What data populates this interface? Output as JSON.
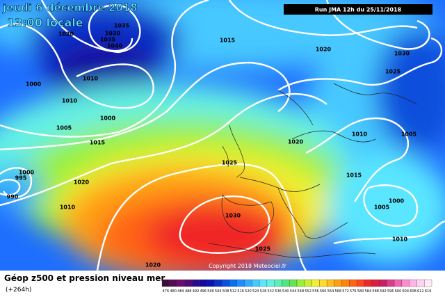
{
  "header": {
    "date": "jeudi 6 décembre 2018",
    "time": "13:00 locale",
    "run": "Run JMA 12h du 25/11/2018"
  },
  "isobar_labels": [
    "1020",
    "1035",
    "1030",
    "1035",
    "1040",
    "1000",
    "1010",
    "1010",
    "1000",
    "1005",
    "1015",
    "1015",
    "1020",
    "1030",
    "1025",
    "1010",
    "1005",
    "1020",
    "1025",
    "1000",
    "995",
    "1020",
    "990",
    "1010",
    "1015",
    "1000",
    "1005",
    "1030",
    "1010",
    "1025",
    "1020"
  ],
  "copyright": "Copyright 2018 Meteociel.fr",
  "legend": {
    "title": "Géop z500 et pression niveau mer",
    "lead": "(+264h)",
    "scale": [
      {
        "label": "476",
        "color": "#3c0a3c"
      },
      {
        "label": "480",
        "color": "#550a55"
      },
      {
        "label": "484",
        "color": "#6e0a6e"
      },
      {
        "label": "488",
        "color": "#500a78"
      },
      {
        "label": "492",
        "color": "#2d0a8c"
      },
      {
        "label": "496",
        "color": "#140aa0"
      },
      {
        "label": "500",
        "color": "#0a14b4"
      },
      {
        "label": "504",
        "color": "#0a32c8"
      },
      {
        "label": "508",
        "color": "#0a50dc"
      },
      {
        "label": "512",
        "color": "#0a6ef0"
      },
      {
        "label": "516",
        "color": "#1e8cff"
      },
      {
        "label": "520",
        "color": "#32aaff"
      },
      {
        "label": "524",
        "color": "#46c8ff"
      },
      {
        "label": "528",
        "color": "#5ae6ff"
      },
      {
        "label": "532",
        "color": "#64f0e6"
      },
      {
        "label": "536",
        "color": "#5af0b4"
      },
      {
        "label": "540",
        "color": "#50e682"
      },
      {
        "label": "544",
        "color": "#64e650"
      },
      {
        "label": "548",
        "color": "#96f03c"
      },
      {
        "label": "552",
        "color": "#c8f032"
      },
      {
        "label": "556",
        "color": "#f0f032"
      },
      {
        "label": "560",
        "color": "#ffdc28"
      },
      {
        "label": "564",
        "color": "#ffbe1e"
      },
      {
        "label": "568",
        "color": "#ffa014"
      },
      {
        "label": "572",
        "color": "#ff820a"
      },
      {
        "label": "576",
        "color": "#ff6414"
      },
      {
        "label": "580",
        "color": "#ff461e"
      },
      {
        "label": "584",
        "color": "#f02828"
      },
      {
        "label": "588",
        "color": "#dc1e3c"
      },
      {
        "label": "592",
        "color": "#c81e64"
      },
      {
        "label": "596",
        "color": "#dc3c8c"
      },
      {
        "label": "600",
        "color": "#f064b4"
      },
      {
        "label": "604",
        "color": "#ff8cd2"
      },
      {
        "label": "608",
        "color": "#ffb4e6"
      },
      {
        "label": "612",
        "color": "#ffd2f0"
      },
      {
        "label": "616",
        "color": "#ffebf8"
      }
    ]
  }
}
